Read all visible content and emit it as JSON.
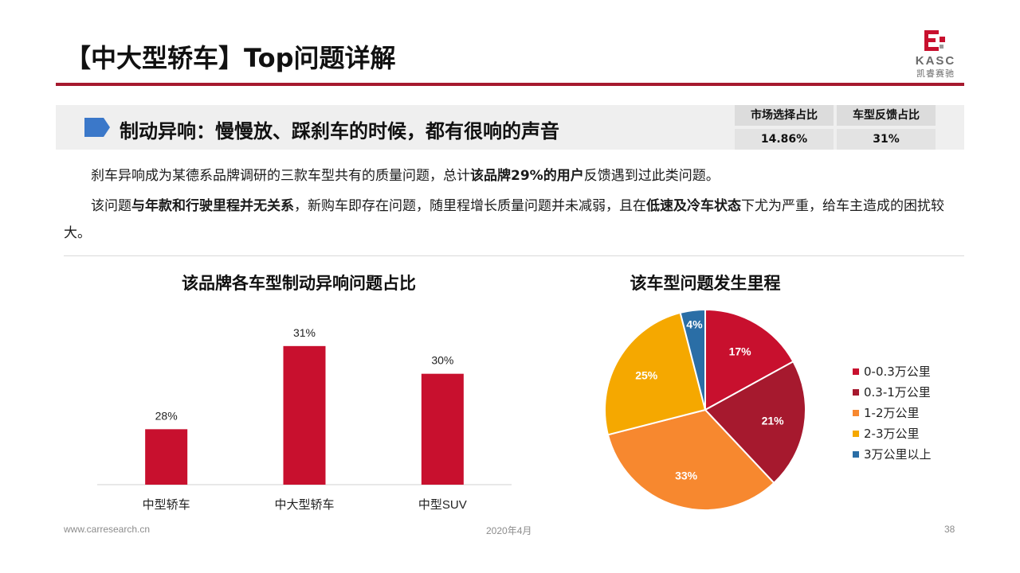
{
  "header": {
    "title": "【中大型轿车】Top问题详解",
    "logo_text": "KASC",
    "logo_sub": "凯睿赛驰"
  },
  "banner": {
    "text": "制动异响：慢慢放、踩刹车的时候，都有很响的声音",
    "stats": {
      "headers": [
        "市场选择占比",
        "车型反馈占比"
      ],
      "values": [
        "14.86%",
        "31%"
      ]
    }
  },
  "paragraphs": [
    {
      "indent": true,
      "runs": [
        {
          "text": "刹车异响成为某德系品牌调研的三款车型共有的质量问题，总计",
          "bold": false
        },
        {
          "text": "该品牌29%的用户",
          "bold": true
        },
        {
          "text": "反馈遇到过此类问题。",
          "bold": false
        }
      ]
    },
    {
      "indent": true,
      "runs": [
        {
          "text": "该问题",
          "bold": false
        },
        {
          "text": "与年款和行驶里程并无关系",
          "bold": true
        },
        {
          "text": "，新购车即存在问题，随里程增长质量问题并未减弱，且在",
          "bold": false
        },
        {
          "text": "低速及冷车状态",
          "bold": true
        },
        {
          "text": "下尤为严重，给车主造成的困扰较大。",
          "bold": false
        }
      ]
    }
  ],
  "chart_data": [
    {
      "type": "bar",
      "title": "该品牌各车型制动异响问题占比",
      "categories": [
        "中型轿车",
        "中大型轿车",
        "中型SUV"
      ],
      "values": [
        28,
        31,
        30
      ],
      "value_labels": [
        "28%",
        "31%",
        "30%"
      ],
      "ylim": [
        26,
        32
      ],
      "color": "#c8102e",
      "grid": false
    },
    {
      "type": "pie",
      "title": "该车型问题发生里程",
      "labels": [
        "0-0.3万公里",
        "0.3-1万公里",
        "1-2万公里",
        "2-3万公里",
        "3万公里以上"
      ],
      "values": [
        17,
        21,
        33,
        25,
        4
      ],
      "value_labels": [
        "17%",
        "21%",
        "33%",
        "25%",
        "4%"
      ],
      "colors": [
        "#c8102e",
        "#a6192e",
        "#f7882f",
        "#f5a800",
        "#2a6ea6"
      ],
      "legend": "right"
    }
  ],
  "footer": {
    "url": "www.carresearch.cn",
    "date": "2020年4月",
    "page": "38"
  }
}
